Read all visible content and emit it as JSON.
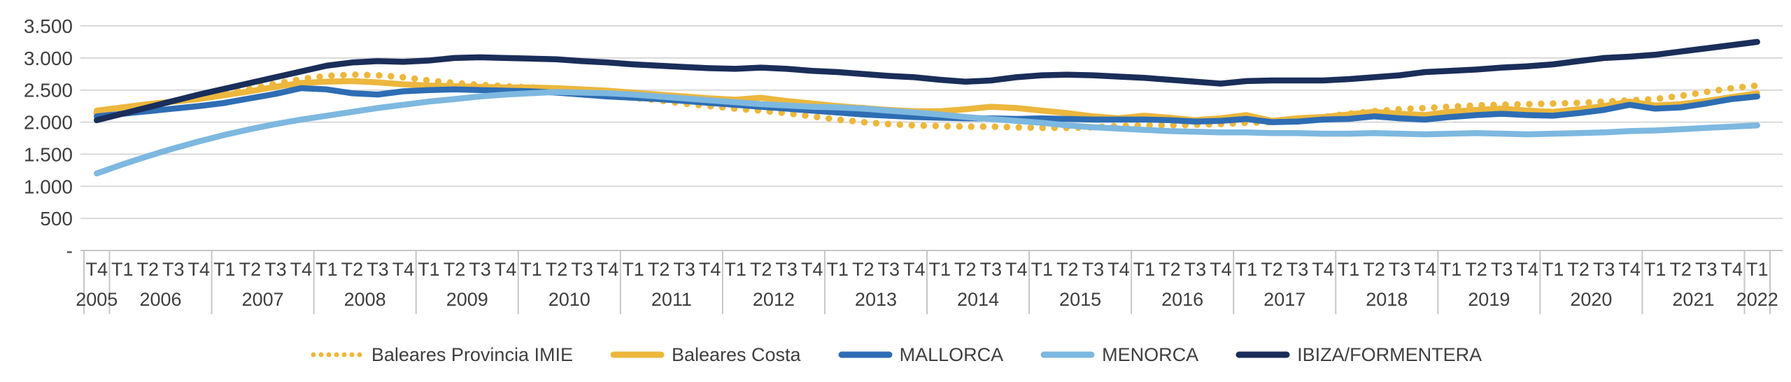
{
  "chart_data": {
    "type": "line",
    "title": "",
    "xlabel": "",
    "ylabel": "",
    "ylim": [
      0,
      3500
    ],
    "grid": true,
    "legend_position": "bottom",
    "y_ticks": [
      {
        "label": "3.500",
        "value": 3500
      },
      {
        "label": "3.000",
        "value": 3000
      },
      {
        "label": "2.500",
        "value": 2500
      },
      {
        "label": "2.000",
        "value": 2000
      },
      {
        "label": "1.500",
        "value": 1500
      },
      {
        "label": "1.000",
        "value": 1000
      },
      {
        "label": "500",
        "value": 500
      },
      {
        "label": "-",
        "value": 0
      }
    ],
    "x_quarter_labels": [
      "T4",
      "T1",
      "T2",
      "T3",
      "T4",
      "T1",
      "T2",
      "T3",
      "T4",
      "T1",
      "T2",
      "T3",
      "T4",
      "T1",
      "T2",
      "T3",
      "T4",
      "T1",
      "T2",
      "T3",
      "T4",
      "T1",
      "T2",
      "T3",
      "T4",
      "T1",
      "T2",
      "T3",
      "T4",
      "T1",
      "T2",
      "T3",
      "T4",
      "T1",
      "T2",
      "T3",
      "T4",
      "T1",
      "T2",
      "T3",
      "T4",
      "T1",
      "T2",
      "T3",
      "T4",
      "T1",
      "T2",
      "T3",
      "T4",
      "T1",
      "T2",
      "T3",
      "T4",
      "T1",
      "T2",
      "T3",
      "T4",
      "T1",
      "T2",
      "T3",
      "T4",
      "T1",
      "T2",
      "T3",
      "T4",
      "T1"
    ],
    "x_year_groups": [
      {
        "label": "2005",
        "count": 1
      },
      {
        "label": "2006",
        "count": 4
      },
      {
        "label": "2007",
        "count": 4
      },
      {
        "label": "2008",
        "count": 4
      },
      {
        "label": "2009",
        "count": 4
      },
      {
        "label": "2010",
        "count": 4
      },
      {
        "label": "2011",
        "count": 4
      },
      {
        "label": "2012",
        "count": 4
      },
      {
        "label": "2013",
        "count": 4
      },
      {
        "label": "2014",
        "count": 4
      },
      {
        "label": "2015",
        "count": 4
      },
      {
        "label": "2016",
        "count": 4
      },
      {
        "label": "2017",
        "count": 4
      },
      {
        "label": "2018",
        "count": 4
      },
      {
        "label": "2019",
        "count": 4
      },
      {
        "label": "2020",
        "count": 4
      },
      {
        "label": "2021",
        "count": 4
      },
      {
        "label": "2022",
        "count": 1
      }
    ],
    "colors": {
      "grid": "#d9d9d9",
      "axis": "#c6c6c6",
      "text": "#3f3f3f"
    },
    "series": [
      {
        "id": "baleares-provincia-imie",
        "name": "Baleares Provincia IMIE",
        "color": "#ecb73c",
        "line_style": "dotted",
        "values": [
          2140,
          2200,
          2260,
          2320,
          2380,
          2450,
          2520,
          2600,
          2670,
          2720,
          2740,
          2730,
          2700,
          2650,
          2610,
          2580,
          2560,
          2540,
          2520,
          2470,
          2420,
          2380,
          2340,
          2290,
          2250,
          2210,
          2180,
          2140,
          2090,
          2040,
          2000,
          1970,
          1950,
          1940,
          1930,
          1930,
          1920,
          1910,
          1910,
          1920,
          1940,
          1950,
          1950,
          1960,
          1970,
          1990,
          2000,
          2030,
          2080,
          2130,
          2170,
          2200,
          2220,
          2240,
          2260,
          2270,
          2280,
          2290,
          2300,
          2320,
          2340,
          2360,
          2410,
          2470,
          2530,
          2570
        ]
      },
      {
        "id": "baleares-costa",
        "name": "Baleares Costa",
        "color": "#ecb73c",
        "line_style": "solid",
        "values": [
          2180,
          2230,
          2280,
          2320,
          2360,
          2420,
          2480,
          2550,
          2610,
          2630,
          2640,
          2620,
          2590,
          2570,
          2560,
          2550,
          2540,
          2540,
          2530,
          2510,
          2490,
          2460,
          2430,
          2400,
          2370,
          2350,
          2380,
          2330,
          2290,
          2250,
          2220,
          2190,
          2170,
          2170,
          2200,
          2240,
          2220,
          2180,
          2140,
          2090,
          2060,
          2100,
          2070,
          2030,
          2060,
          2110,
          2020,
          2060,
          2080,
          2120,
          2160,
          2130,
          2110,
          2160,
          2190,
          2210,
          2180,
          2160,
          2200,
          2250,
          2320,
          2260,
          2280,
          2330,
          2390,
          2450
        ]
      },
      {
        "id": "mallorca",
        "name": "MALLORCA",
        "color": "#2e6db4",
        "line_style": "solid",
        "values": [
          2090,
          2130,
          2170,
          2210,
          2250,
          2300,
          2370,
          2440,
          2530,
          2510,
          2450,
          2430,
          2480,
          2500,
          2510,
          2500,
          2490,
          2480,
          2460,
          2430,
          2400,
          2380,
          2360,
          2330,
          2300,
          2270,
          2240,
          2210,
          2180,
          2150,
          2120,
          2100,
          2080,
          2070,
          2060,
          2060,
          2050,
          2060,
          2050,
          2040,
          2040,
          2040,
          2030,
          2010,
          2020,
          2050,
          2000,
          2010,
          2040,
          2050,
          2090,
          2060,
          2040,
          2080,
          2110,
          2130,
          2110,
          2100,
          2140,
          2190,
          2270,
          2210,
          2230,
          2290,
          2360,
          2400
        ]
      },
      {
        "id": "menorca",
        "name": "MENORCA",
        "color": "#7db8e0",
        "line_style": "solid",
        "values": [
          1200,
          1340,
          1470,
          1590,
          1700,
          1800,
          1890,
          1970,
          2040,
          2100,
          2160,
          2220,
          2270,
          2320,
          2360,
          2400,
          2430,
          2450,
          2470,
          2460,
          2450,
          2430,
          2400,
          2370,
          2340,
          2310,
          2280,
          2260,
          2240,
          2230,
          2210,
          2180,
          2150,
          2120,
          2080,
          2050,
          2020,
          1990,
          1950,
          1920,
          1900,
          1880,
          1860,
          1850,
          1840,
          1840,
          1830,
          1830,
          1820,
          1820,
          1830,
          1820,
          1810,
          1820,
          1830,
          1820,
          1810,
          1820,
          1830,
          1840,
          1860,
          1870,
          1890,
          1910,
          1930,
          1950
        ]
      },
      {
        "id": "ibiza-formentera",
        "name": "IBIZA/FORMENTERA",
        "color": "#1a2e5a",
        "line_style": "solid",
        "values": [
          2030,
          2130,
          2230,
          2330,
          2430,
          2520,
          2610,
          2700,
          2790,
          2880,
          2930,
          2950,
          2940,
          2960,
          3000,
          3010,
          3000,
          2990,
          2980,
          2950,
          2930,
          2900,
          2880,
          2860,
          2840,
          2830,
          2850,
          2830,
          2800,
          2780,
          2750,
          2720,
          2700,
          2660,
          2630,
          2650,
          2700,
          2730,
          2740,
          2730,
          2710,
          2690,
          2660,
          2630,
          2600,
          2640,
          2650,
          2650,
          2650,
          2670,
          2700,
          2730,
          2780,
          2800,
          2820,
          2850,
          2870,
          2900,
          2950,
          3000,
          3020,
          3050,
          3100,
          3150,
          3200,
          3250
        ]
      }
    ]
  }
}
